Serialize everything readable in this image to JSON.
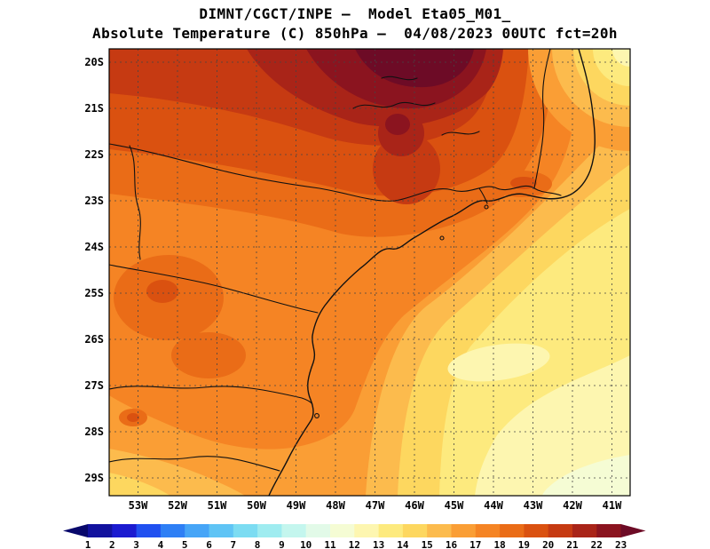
{
  "title": {
    "line1": "DIMNT/CGCT/INPE —  Model Eta05_M01_",
    "line2": "Absolute Temperature (C) 850hPa —  04/08/2023 00UTC fct=20h"
  },
  "axes": {
    "lat_labels": [
      "20S",
      "21S",
      "22S",
      "23S",
      "24S",
      "25S",
      "26S",
      "27S",
      "28S",
      "29S"
    ],
    "lon_labels": [
      "53W",
      "52W",
      "51W",
      "50W",
      "49W",
      "48W",
      "47W",
      "46W",
      "45W",
      "44W",
      "43W",
      "42W",
      "41W"
    ]
  },
  "colorbar": {
    "tick_labels": [
      "1",
      "2",
      "3",
      "4",
      "5",
      "6",
      "7",
      "8",
      "9",
      "10",
      "11",
      "12",
      "13",
      "14",
      "15",
      "16",
      "17",
      "18",
      "19",
      "20",
      "21",
      "22",
      "23"
    ]
  },
  "palette": [
    "#08086b",
    "#12129e",
    "#1b1bd0",
    "#2050f0",
    "#2e7ff5",
    "#46a5f7",
    "#5fc4f5",
    "#7cdcf2",
    "#9fecf0",
    "#c4f6ee",
    "#e2fae8",
    "#f5fcd4",
    "#fdf6b0",
    "#fdea7e",
    "#fdd75f",
    "#fcbb4d",
    "#fa9e35",
    "#f58424",
    "#ea6c17",
    "#da5110",
    "#c63a12",
    "#a92418",
    "#8b141f",
    "#6d0b26"
  ],
  "map": {
    "grid_color": "#444444",
    "border_color": "#000000",
    "geo_line_color": "#111111"
  }
}
